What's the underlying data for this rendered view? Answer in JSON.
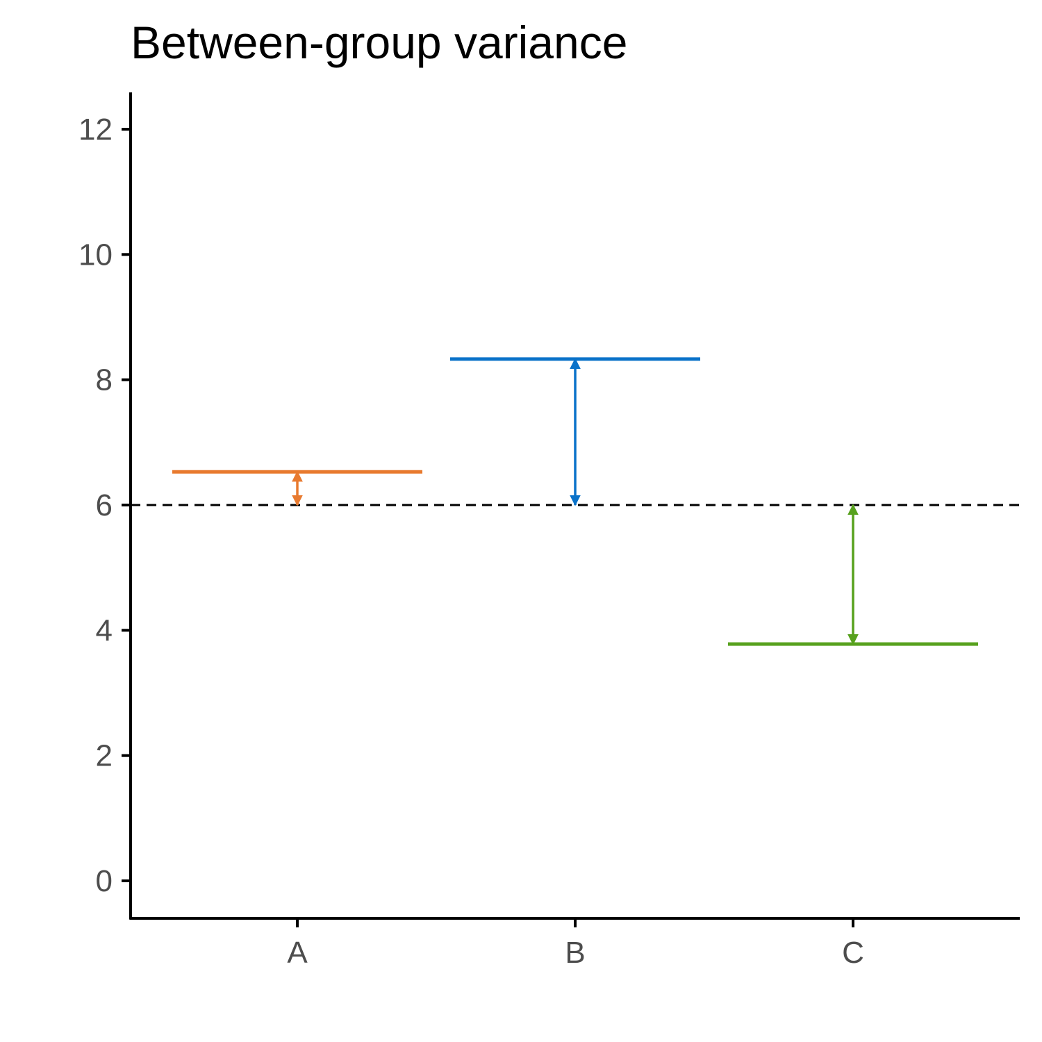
{
  "chart_data": {
    "type": "errorbar",
    "title": "Between-group variance",
    "xlabel": "",
    "ylabel": "",
    "categories": [
      "A",
      "B",
      "C"
    ],
    "group_means": [
      6.53,
      8.33,
      3.78
    ],
    "grand_mean": 6.0,
    "colors": [
      "#E87A2F",
      "#0A72C9",
      "#57A11D"
    ],
    "grand_mean_color": "#000000",
    "ylim": [
      -0.6,
      12.6
    ],
    "yticks": [
      "0",
      "2",
      "4",
      "6",
      "8",
      "10",
      "12"
    ],
    "grid": false,
    "legend": "none"
  }
}
